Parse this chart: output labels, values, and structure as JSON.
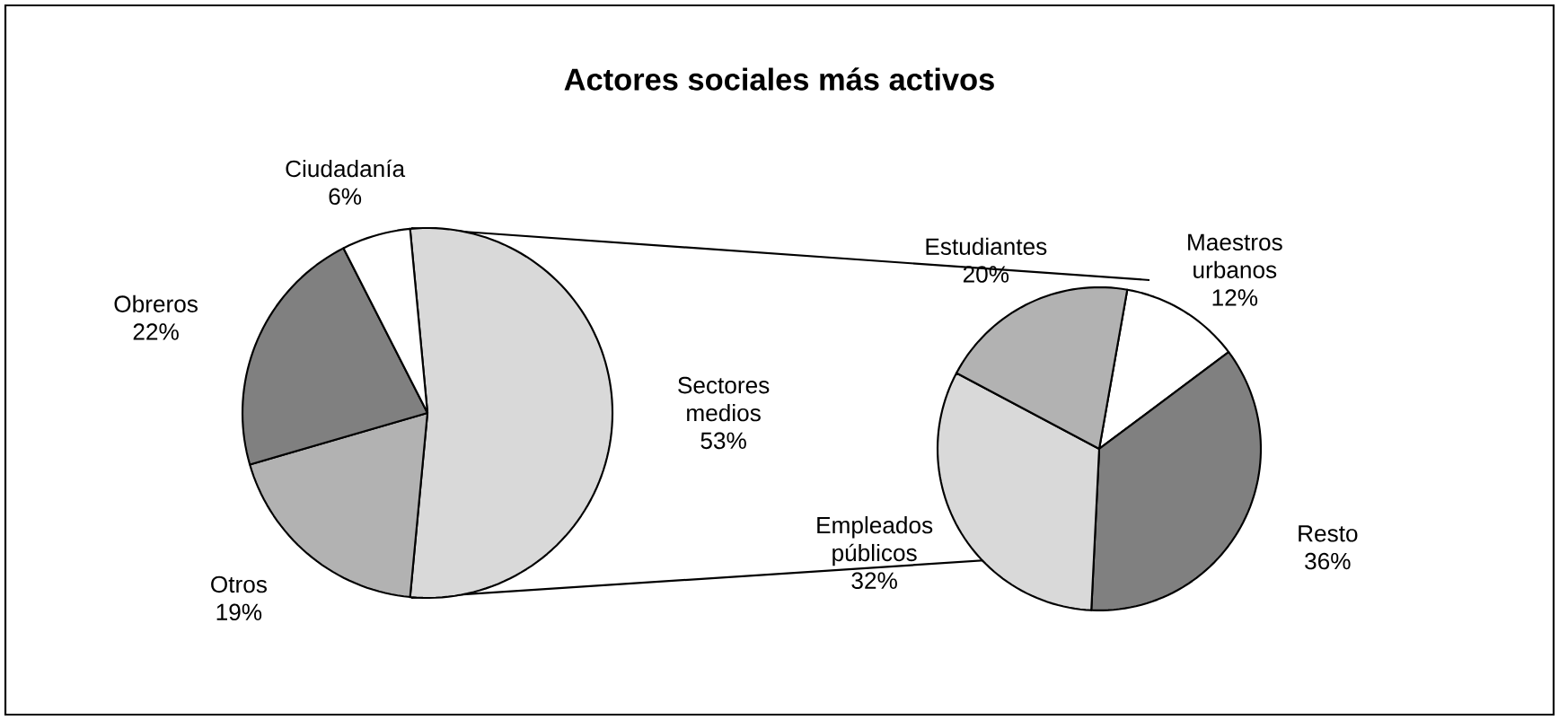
{
  "chart_data": [
    {
      "type": "pie",
      "title": "Actores sociales más activos",
      "categories": [
        "Sectores medios",
        "Otros",
        "Obreros",
        "Ciudadanía"
      ],
      "values": [
        53,
        19,
        22,
        6
      ],
      "value_labels": [
        "53%",
        "19%",
        "22%",
        "6%"
      ],
      "colors": [
        "#d9d9d9",
        "#b2b2b2",
        "#808080",
        "#ffffff"
      ]
    },
    {
      "type": "pie",
      "categories": [
        "Maestros urbanos",
        "Resto",
        "Empleados públicos",
        "Estudiantes"
      ],
      "values": [
        12,
        36,
        32,
        20
      ],
      "value_labels": [
        "12%",
        "36%",
        "32%",
        "20%"
      ],
      "colors": [
        "#ffffff",
        "#808080",
        "#d9d9d9",
        "#b2b2b2"
      ]
    }
  ]
}
